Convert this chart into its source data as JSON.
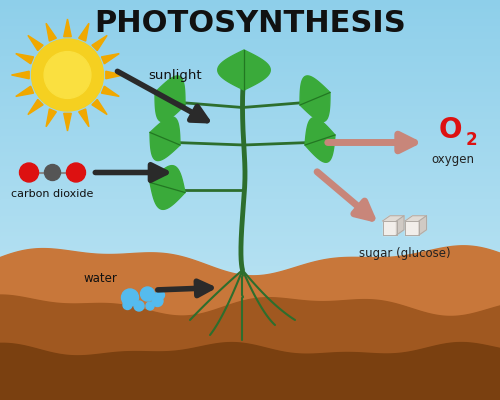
{
  "title": "PHOTOSYNTHESIS",
  "title_fontsize": 22,
  "title_color": "#111111",
  "sky_top": "#8ecfea",
  "sky_bottom": "#c5e8f5",
  "ground1": "#c8773a",
  "ground2": "#a05820",
  "ground3": "#7a4010",
  "stem_color": "#2d6e2d",
  "leaf_color": "#3aaa3a",
  "leaf_dark": "#227722",
  "sun_yellow": "#f5d020",
  "sun_orange": "#f0a800",
  "arrow_dark": "#2a2a2a",
  "arrow_peach": "#c8867a",
  "co2_red": "#dd1111",
  "co2_gray": "#555555",
  "water_blue": "#55bbee",
  "o2_red": "#dd1111",
  "sunlight_label": "sunlight",
  "carbon_label": "carbon dioxide",
  "water_label": "water",
  "oxygen_label": "oxygen",
  "sugar_label": "sugar (glucose)"
}
